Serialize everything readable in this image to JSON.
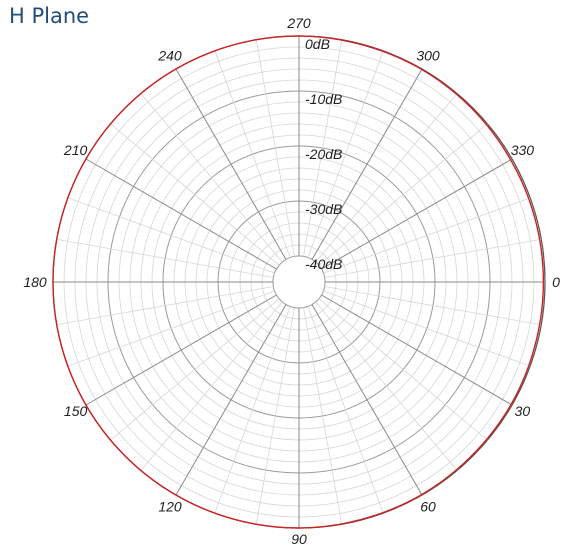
{
  "chart_data": {
    "type": "polar-line",
    "title": "H Plane",
    "angle_ticks": [
      "0",
      "30",
      "60",
      "90",
      "120",
      "150",
      "180",
      "210",
      "240",
      "270",
      "300",
      "330"
    ],
    "angle_tick_values": [
      0,
      30,
      60,
      90,
      120,
      150,
      180,
      210,
      240,
      270,
      300,
      330
    ],
    "radial_ticks": [
      "0dB",
      "-10dB",
      "-20dB",
      "-30dB",
      "-40dB"
    ],
    "radial_tick_values": [
      0,
      -10,
      -20,
      -30,
      -40
    ],
    "rlim": [
      -40,
      0
    ],
    "angle_direction": "clockwise",
    "zero_angle": "right",
    "grid": true,
    "series": [
      {
        "color": "#cc2222",
        "angles": [
          0,
          15,
          30,
          45,
          60,
          75,
          90,
          105,
          120,
          135,
          150,
          165,
          180,
          195,
          210,
          225,
          240,
          255,
          270,
          285,
          300,
          315,
          330,
          345,
          360
        ],
        "values": [
          -0.3,
          -0.3,
          -0.2,
          -0.2,
          -0.1,
          -0.1,
          0,
          0,
          0,
          0,
          0,
          0,
          0,
          0,
          0,
          0,
          0,
          0,
          0,
          -0.1,
          -0.1,
          -0.2,
          -0.3,
          -0.3,
          -0.3
        ]
      }
    ]
  }
}
